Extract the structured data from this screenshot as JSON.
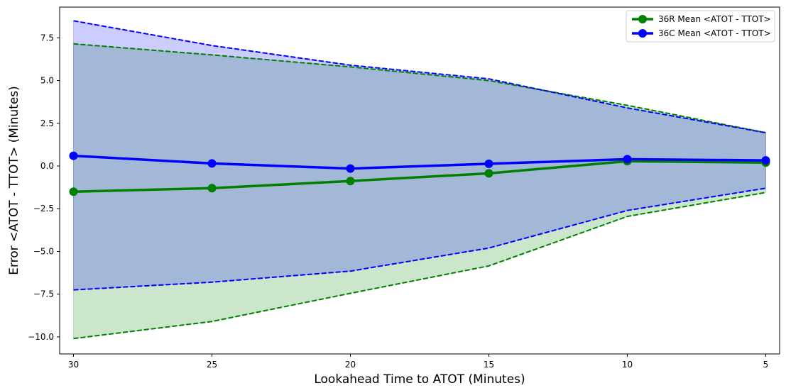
{
  "chart_data": {
    "type": "line",
    "title": "",
    "xlabel": "Lookahead Time to ATOT (Minutes)",
    "ylabel": "Error <ATOT - TTOT> (Minutes)",
    "x": [
      30,
      25,
      20,
      15,
      10,
      5
    ],
    "x_axis_reversed": true,
    "xlim": [
      30.5,
      4.5
    ],
    "ylim": [
      -11.0,
      9.3
    ],
    "xticks": [
      30,
      25,
      20,
      15,
      10,
      5
    ],
    "yticks": [
      -10.0,
      -7.5,
      -5.0,
      -2.5,
      0.0,
      2.5,
      5.0,
      7.5
    ],
    "ytick_labels": [
      "−10.0",
      "−7.5",
      "−5.0",
      "−2.5",
      "0.0",
      "2.5",
      "5.0",
      "7.5"
    ],
    "grid": false,
    "legend_position": "top-right",
    "series": [
      {
        "name": "36R Mean <ATOT - TTOT>",
        "color": "#008000",
        "values": [
          -1.5,
          -1.3,
          -0.88,
          -0.43,
          0.28,
          0.2
        ],
        "upper": [
          7.15,
          6.5,
          5.8,
          5.0,
          3.55,
          1.95
        ],
        "lower": [
          -10.1,
          -9.1,
          -7.45,
          -5.85,
          -2.95,
          -1.55
        ],
        "band_fill": "rgba(0,128,0,0.2)"
      },
      {
        "name": "36C Mean <ATOT - TTOT>",
        "color": "#0000ff",
        "values": [
          0.6,
          0.15,
          -0.15,
          0.13,
          0.4,
          0.33
        ],
        "upper": [
          8.5,
          7.05,
          5.9,
          5.1,
          3.4,
          1.95
        ],
        "lower": [
          -7.25,
          -6.8,
          -6.15,
          -4.8,
          -2.6,
          -1.3
        ],
        "band_fill": "rgba(0,0,255,0.2)"
      }
    ]
  }
}
